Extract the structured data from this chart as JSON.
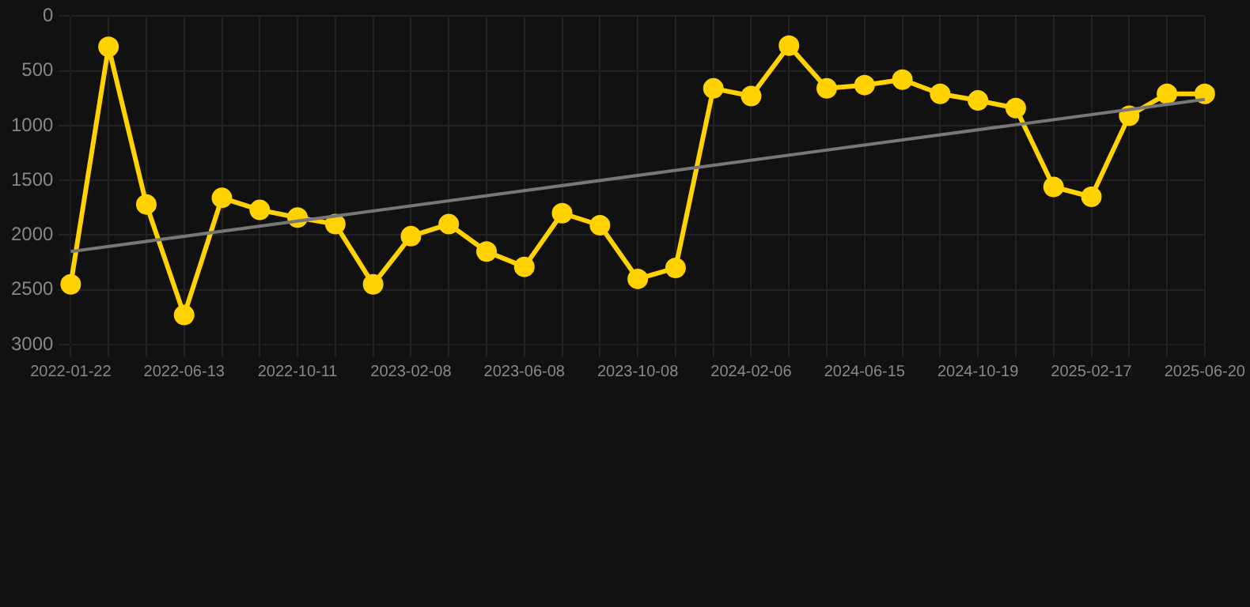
{
  "chart_data": {
    "type": "line",
    "categories": [
      "2022-01-22",
      null,
      null,
      "2022-06-13",
      null,
      null,
      "2022-10-11",
      null,
      null,
      "2023-02-08",
      null,
      null,
      "2023-06-08",
      null,
      null,
      "2023-10-08",
      null,
      null,
      "2024-02-06",
      null,
      null,
      "2024-06-15",
      null,
      null,
      "2024-10-19",
      null,
      null,
      "2025-02-17",
      null,
      null,
      "2025-06-20"
    ],
    "series": [
      {
        "color": "#ffd200",
        "values": [
          2450,
          280,
          1720,
          2730,
          1660,
          1770,
          1840,
          1900,
          2450,
          2010,
          1900,
          2150,
          2290,
          1800,
          1910,
          2400,
          2300,
          660,
          730,
          270,
          660,
          630,
          580,
          710,
          770,
          840,
          1560,
          1650,
          910,
          710,
          710
        ]
      },
      {
        "type": "line",
        "color": "#777777",
        "marker": "none",
        "values": [
          2150,
          null,
          null,
          null,
          null,
          null,
          null,
          null,
          null,
          null,
          null,
          null,
          null,
          null,
          null,
          null,
          null,
          null,
          null,
          null,
          null,
          null,
          null,
          null,
          null,
          null,
          null,
          null,
          null,
          null,
          760
        ]
      }
    ],
    "ylim": [
      3000,
      0
    ],
    "yticks": [
      0,
      500,
      1000,
      1500,
      2000,
      2500,
      3000
    ],
    "grid": true,
    "marker": "circle",
    "line_style": "solid"
  }
}
